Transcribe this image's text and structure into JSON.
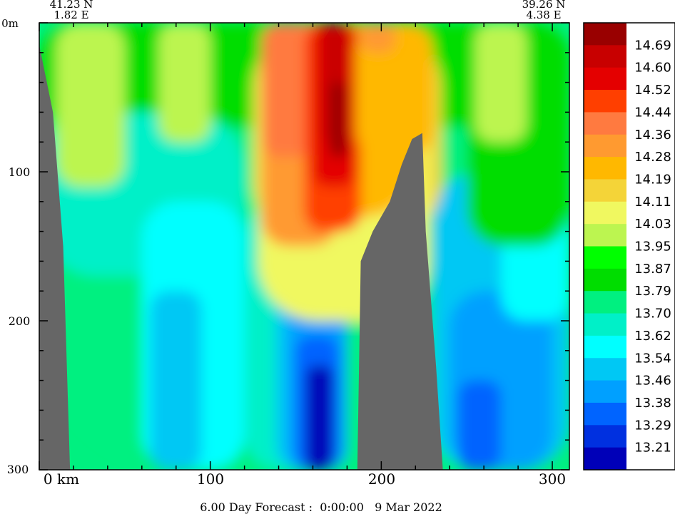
{
  "chart_data": {
    "type": "heatmap",
    "title": "",
    "start_point": {
      "lat": "41.23 N",
      "lon": "1.82 E"
    },
    "end_point": {
      "lat": "39.26 N",
      "lon": "4.38 E"
    },
    "xlabel": "",
    "ylabel": "",
    "x_unit": "km",
    "y_unit": "m",
    "x_range": [
      0,
      310
    ],
    "y_range": [
      0,
      300
    ],
    "x_ticks": [
      0,
      100,
      200,
      300
    ],
    "x_tick_labels": [
      "0 km",
      "100",
      "200",
      "300"
    ],
    "y_ticks": [
      0,
      100,
      200,
      300
    ],
    "y_tick_labels": [
      "0m",
      "100",
      "200",
      "300"
    ],
    "colorbar_values": [
      "14.69",
      "14.60",
      "14.52",
      "14.44",
      "14.36",
      "14.28",
      "14.19",
      "14.11",
      "14.03",
      "13.95",
      "13.87",
      "13.79",
      "13.70",
      "13.62",
      "13.54",
      "13.46",
      "13.38",
      "13.29",
      "13.21"
    ],
    "colorbar_colors": [
      "#990000",
      "#c80000",
      "#e40000",
      "#ff3f00",
      "#ff7a40",
      "#ff9a30",
      "#ffb800",
      "#f4d438",
      "#f0f860",
      "#bcf550",
      "#00ff00",
      "#00dd00",
      "#00f080",
      "#00f0c8",
      "#00ffff",
      "#00c8f4",
      "#00a0ff",
      "#0064ff",
      "#0030e0",
      "#0000b8"
    ],
    "land_color": "#666666",
    "series": [
      {
        "x": [
          0,
          20,
          40,
          60,
          80,
          100,
          120,
          140,
          160,
          170,
          180,
          190,
          200,
          210,
          220,
          240,
          260,
          280,
          300,
          310
        ],
        "surface_values": [
          13.9,
          13.92,
          13.95,
          13.98,
          13.98,
          13.93,
          13.95,
          14.36,
          14.6,
          14.69,
          14.69,
          14.28,
          14.19,
          14.19,
          14.11,
          13.9,
          13.87,
          13.95,
          13.87,
          13.87
        ]
      }
    ],
    "bathymetry": [
      {
        "x": 0,
        "depth": 15
      },
      {
        "x": 8,
        "depth": 60
      },
      {
        "x": 14,
        "depth": 150
      },
      {
        "x": 18,
        "depth": 300
      },
      {
        "x": 186,
        "depth": 300
      },
      {
        "x": 188,
        "depth": 160
      },
      {
        "x": 195,
        "depth": 140
      },
      {
        "x": 205,
        "depth": 120
      },
      {
        "x": 212,
        "depth": 95
      },
      {
        "x": 218,
        "depth": 78
      },
      {
        "x": 224,
        "depth": 74
      },
      {
        "x": 226,
        "depth": 140
      },
      {
        "x": 232,
        "depth": 230
      },
      {
        "x": 236,
        "depth": 300
      }
    ]
  },
  "caption": "6.00 Day Forecast :  0:00:00   9 Mar 2022"
}
